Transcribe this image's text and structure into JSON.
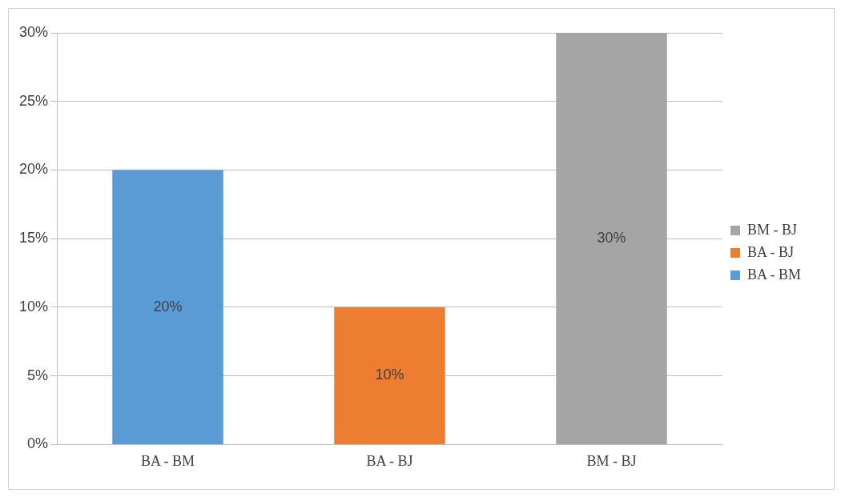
{
  "chart_data": {
    "type": "bar",
    "categories": [
      "BA - BM",
      "BA - BJ",
      "BM - BJ"
    ],
    "stacked": true,
    "series": [
      {
        "name": "BA - BM",
        "color": "#5b9bd5",
        "values": [
          20,
          null,
          null
        ],
        "value_labels": [
          "20%",
          null,
          null
        ]
      },
      {
        "name": "BA - BJ",
        "color": "#ed7d31",
        "values": [
          null,
          10,
          null
        ],
        "value_labels": [
          null,
          "10%",
          null
        ]
      },
      {
        "name": "BM - BJ",
        "color": "#a5a5a5",
        "values": [
          null,
          null,
          30
        ],
        "value_labels": [
          null,
          null,
          "30%"
        ]
      }
    ],
    "ylim": [
      0,
      30
    ],
    "yticks": [
      {
        "value": 0,
        "label": "0%"
      },
      {
        "value": 5,
        "label": "5%"
      },
      {
        "value": 10,
        "label": "10%"
      },
      {
        "value": 15,
        "label": "15%"
      },
      {
        "value": 20,
        "label": "20%"
      },
      {
        "value": 25,
        "label": "25%"
      },
      {
        "value": 30,
        "label": "30%"
      }
    ],
    "grid": "y",
    "legend": "right"
  }
}
